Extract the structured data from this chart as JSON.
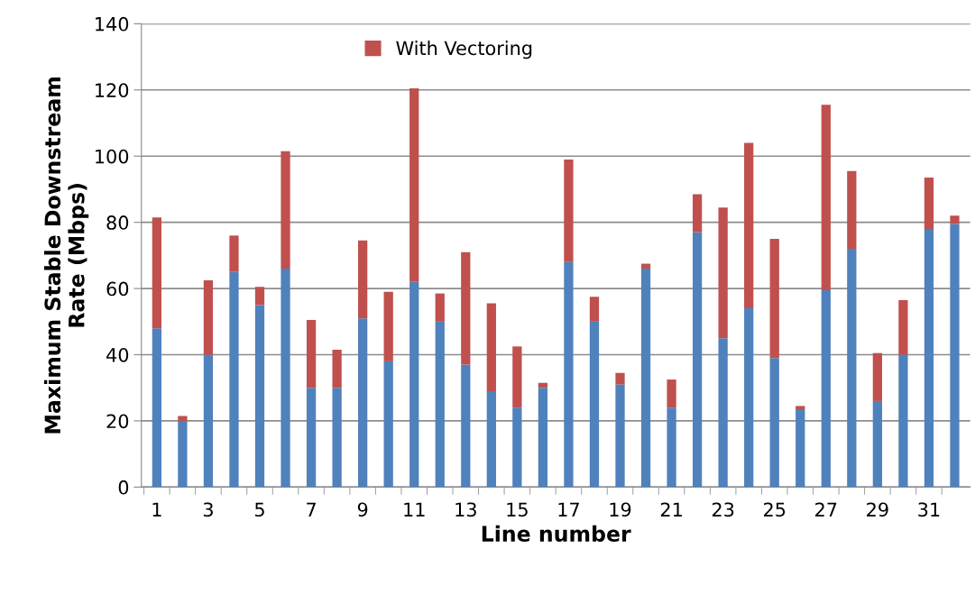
{
  "chart_data": {
    "type": "bar",
    "stacked": true,
    "xlabel": "Line number",
    "ylabel": "Maximum Stable Downstream\nRate (Mbps)",
    "categories": [
      "1",
      null,
      "3",
      null,
      "5",
      null,
      "7",
      null,
      "9",
      null,
      "11",
      null,
      "13",
      null,
      "15",
      null,
      "17",
      null,
      "19",
      null,
      "21",
      null,
      "23",
      null,
      "25",
      null,
      "27",
      null,
      "29",
      null,
      "31",
      null
    ],
    "series": [
      {
        "color": "#4f81bd",
        "values": [
          48,
          20,
          40,
          65,
          55,
          66,
          30,
          30,
          51,
          38,
          62,
          50,
          37,
          29,
          24,
          30,
          68,
          50,
          31,
          66,
          24,
          77,
          45,
          54,
          39,
          23.5,
          59.5,
          72,
          26,
          40,
          78,
          79.5
        ]
      },
      {
        "name": "With Vectoring",
        "color": "#c0504d",
        "values": [
          33.5,
          1.5,
          22.5,
          11,
          5.5,
          35.5,
          20.5,
          11.5,
          23.5,
          21,
          58.5,
          8.5,
          34,
          26.5,
          18.5,
          1.5,
          31,
          7.5,
          3.5,
          1.5,
          8.5,
          11.5,
          39.5,
          50,
          36,
          1,
          56,
          23.5,
          14.5,
          16.5,
          15.5,
          2.5
        ]
      }
    ],
    "ylim": [
      0,
      140
    ],
    "yticks": [
      0,
      20,
      40,
      60,
      80,
      100,
      120,
      140
    ],
    "grid": "y",
    "legend": "top"
  }
}
